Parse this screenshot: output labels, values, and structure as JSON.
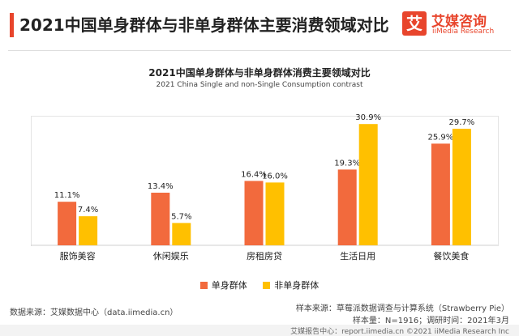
{
  "header": {
    "title": "2021中国单身群体与非单身群体主要消费领域对比",
    "brand_logo_char": "艾",
    "brand_cn": "艾媒咨询",
    "brand_en": "iiMedia Research",
    "accent_color": "#e8452c"
  },
  "chart_data": {
    "type": "bar",
    "title": "2021中国单身群体与非单身群体消费主要领域对比",
    "subtitle": "2021 China Single and non-Single Consumption contrast",
    "categories": [
      "服饰美容",
      "休闲娱乐",
      "房租房贷",
      "生活日用",
      "餐饮美食"
    ],
    "series": [
      {
        "name": "单身群体",
        "values": [
          11.1,
          13.4,
          16.4,
          19.3,
          25.9
        ],
        "labels": [
          "11.1%",
          "13.4%",
          "16.4%",
          "19.3%",
          "25.9%"
        ],
        "color": "#f26a3d"
      },
      {
        "name": "非单身群体",
        "values": [
          7.4,
          5.7,
          16.0,
          30.9,
          29.7
        ],
        "labels": [
          "7.4%",
          "5.7%",
          "16.0%",
          "30.9%",
          "29.7%"
        ],
        "color": "#ffc000"
      }
    ],
    "ylim": [
      0,
      33
    ],
    "grid": false,
    "legend_position": "bottom"
  },
  "footer": {
    "source": "数据来源：艾媒数据中心（data.iimedia.cn）",
    "sample": "样本来源：草莓派数据调查与计算系统（Strawberry Pie）",
    "survey": "样本量：N=1916；调研时间：2021年3月",
    "bottom": "艾媒报告中心：report.iimedia.cn    ©2021  iiMedia Research  Inc"
  }
}
